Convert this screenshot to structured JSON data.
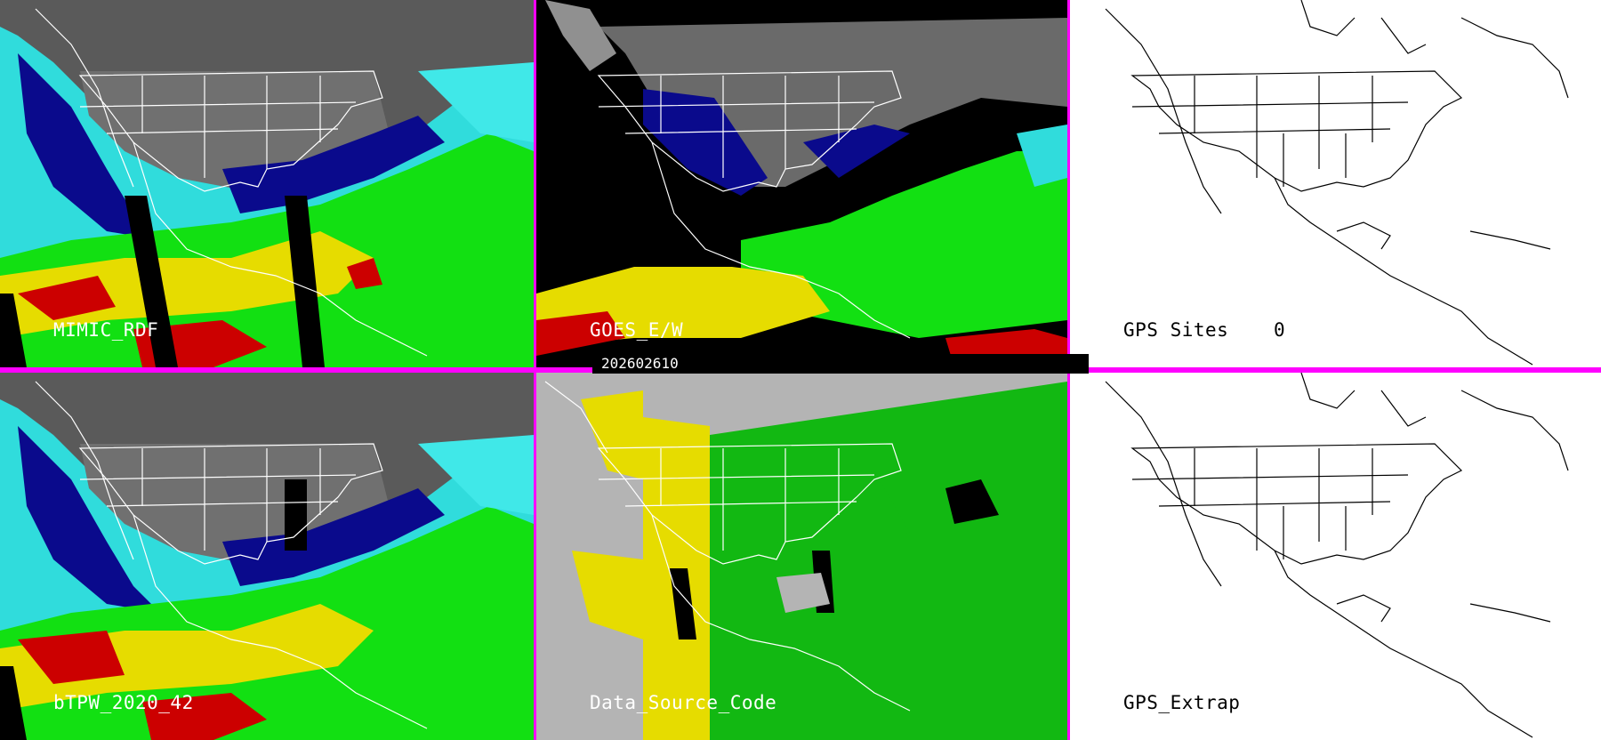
{
  "panels": [
    {
      "id": "mimic-rdf",
      "label": "MIMIC_RDF",
      "type": "tpw"
    },
    {
      "id": "goes-ew",
      "label": "GOES_E/W",
      "type": "goes"
    },
    {
      "id": "gps-sites",
      "label": "GPS Sites",
      "type": "outline"
    },
    {
      "id": "btpw",
      "label": "bTPW_2020_42",
      "type": "tpw"
    },
    {
      "id": "data-source",
      "label": "Data_Source_Code",
      "type": "source"
    },
    {
      "id": "gps-extrap",
      "label": "GPS_Extrap",
      "type": "outline"
    }
  ],
  "gps_sites_count": "0",
  "timestamp": "202602610",
  "colors": {
    "divider": "#ff00ff",
    "land_gray": "#606060",
    "moist_cyan": "#30e0e0",
    "green": "#10e010",
    "yellow": "#e8e000",
    "red": "#d00000",
    "navy": "#000090",
    "source_gray": "#b4b4b4",
    "source_green": "#10b810",
    "source_yellow": "#e0e000"
  }
}
